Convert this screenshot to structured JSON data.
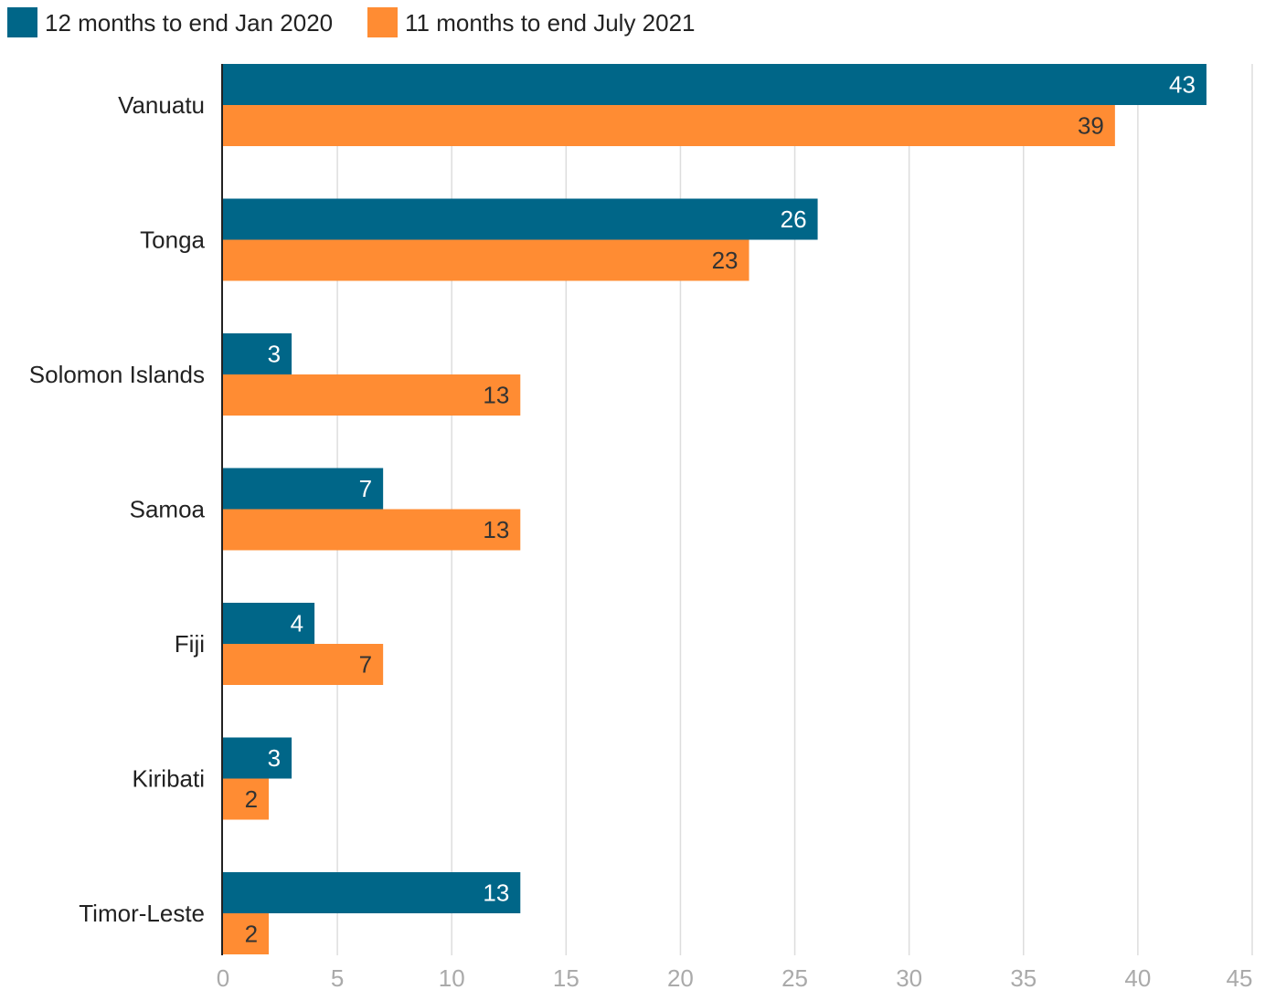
{
  "colors": {
    "series_1": "#006688",
    "series_2": "#ff8c33",
    "grid": "#dddddd",
    "axis": "#222222",
    "label_text": "#222222",
    "tick_text": "#aaaaaa",
    "value_text_dark_bar": "#ffffff",
    "value_text_light_bar": "#333333"
  },
  "chart_data": {
    "type": "bar",
    "orientation": "horizontal",
    "categories": [
      "Vanuatu",
      "Tonga",
      "Solomon Islands",
      "Samoa",
      "Fiji",
      "Kiribati",
      "Timor-Leste"
    ],
    "series": [
      {
        "name": "12 months to end Jan 2020",
        "values": [
          43,
          26,
          3,
          7,
          4,
          3,
          13
        ]
      },
      {
        "name": "11 months to end July 2021",
        "values": [
          39,
          23,
          13,
          13,
          7,
          2,
          2
        ]
      }
    ],
    "xlim": [
      0,
      45
    ],
    "xticks": [
      "0",
      "5",
      "10",
      "15",
      "20",
      "25",
      "30",
      "35",
      "40",
      "45"
    ],
    "xlabel": "",
    "ylabel": "",
    "title": "",
    "grid": "vertical",
    "legend": "top-left"
  }
}
